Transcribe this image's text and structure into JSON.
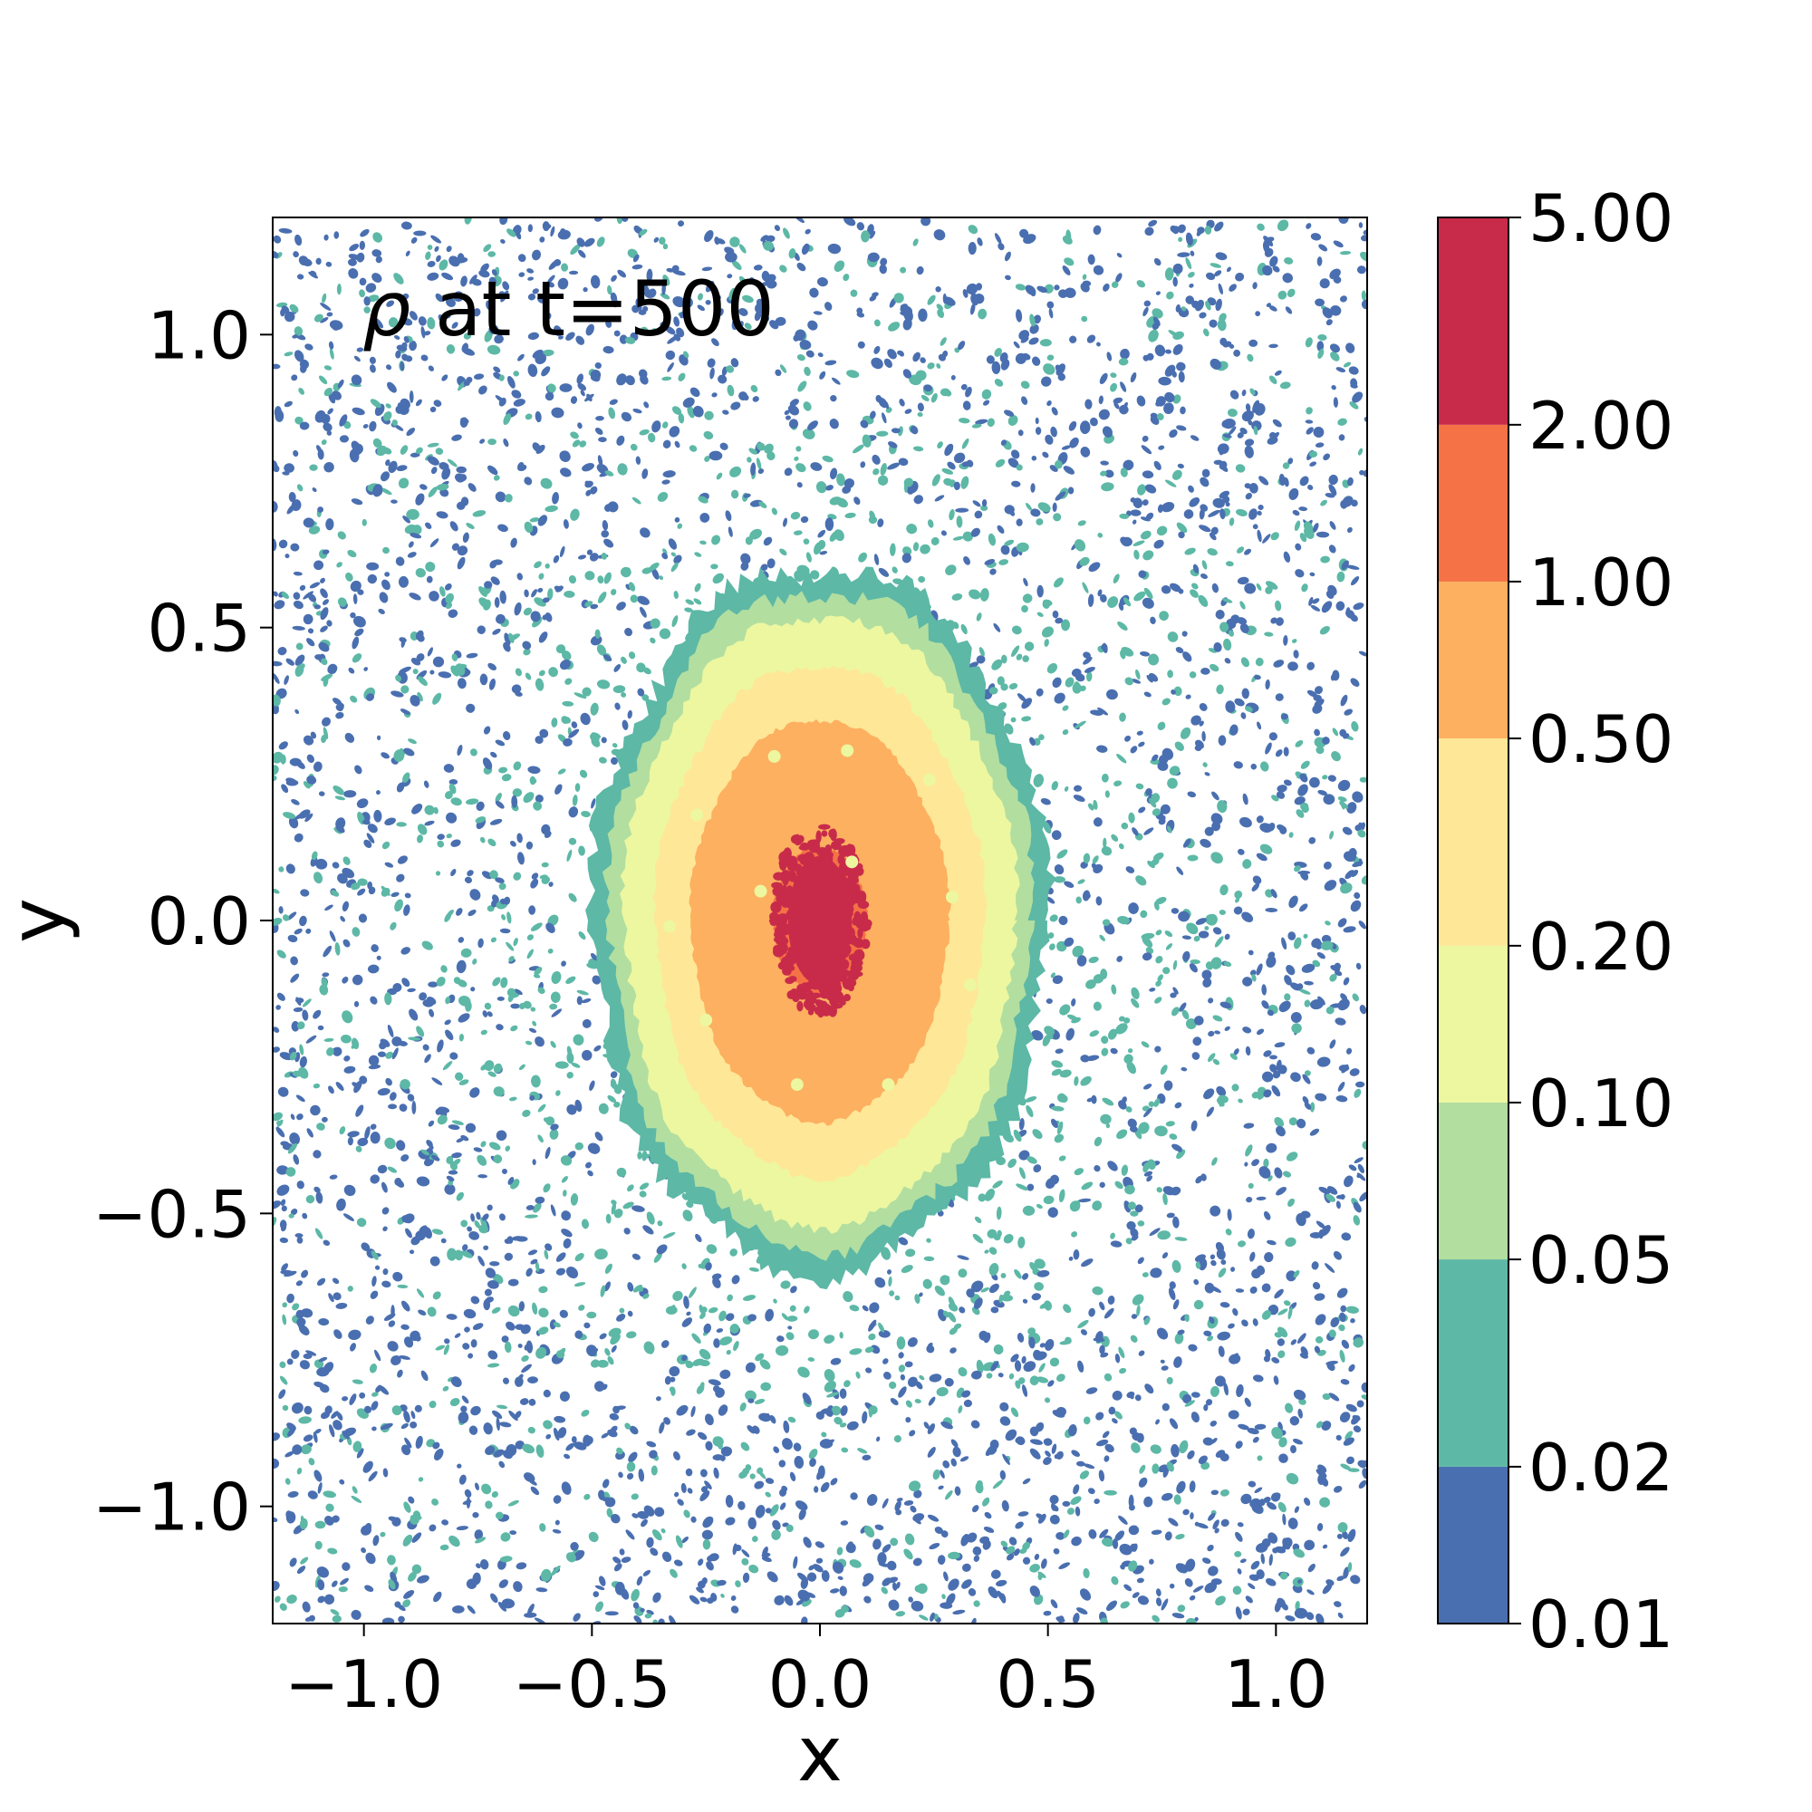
{
  "chart_data": {
    "type": "heatmap",
    "subtype": "filled-contour",
    "annotation": {
      "symbol": "ρ",
      "text": " at t=500"
    },
    "xlabel": "x",
    "ylabel": "y",
    "xlim": [
      -1.2,
      1.2
    ],
    "ylim": [
      -1.2,
      1.2
    ],
    "xticks": [
      -1.0,
      -0.5,
      0.0,
      0.5,
      1.0
    ],
    "xtick_labels": [
      "−1.0",
      "−0.5",
      "0.0",
      "0.5",
      "1.0"
    ],
    "yticks": [
      1.0,
      0.5,
      0.0,
      -0.5,
      -1.0
    ],
    "ytick_labels": [
      "1.0",
      "0.5",
      "0.0",
      "−0.5",
      "−1.0"
    ],
    "grid": false,
    "colorbar": {
      "scale": "categorical-levels",
      "levels": [
        0.01,
        0.02,
        0.05,
        0.1,
        0.2,
        0.5,
        1.0,
        2.0,
        5.0
      ],
      "level_labels": [
        "0.01",
        "0.02",
        "0.05",
        "0.10",
        "0.20",
        "0.50",
        "1.00",
        "2.00",
        "5.00"
      ],
      "colors": [
        "#4a6fb0",
        "#5db8a6",
        "#b2dea0",
        "#ecf7a0",
        "#fee797",
        "#fcb060",
        "#f47245",
        "#c82b4a"
      ]
    },
    "field": {
      "description_of_structure": "central dense core around (0,0) decreasing radially",
      "core_center": [
        0.0,
        0.0
      ],
      "contour_boundaries_radius": {
        "2.00": 0.12,
        "1.00": 0.33,
        "0.50": 0.42,
        "0.20": 0.5,
        "0.10": 0.54,
        "0.05": 0.58
      },
      "noise_level_range": [
        0.01,
        0.05
      ]
    }
  }
}
